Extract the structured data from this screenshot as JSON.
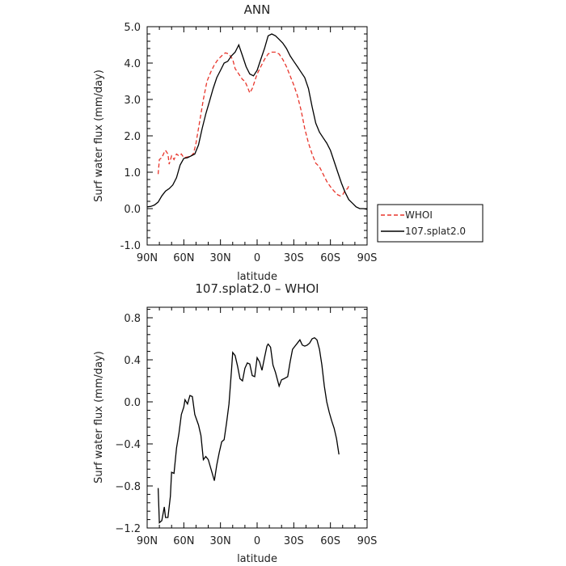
{
  "chart_data": [
    {
      "type": "line",
      "title": "ANN",
      "xlabel": "latitude",
      "ylabel": "Surf water flux (mm/day)",
      "xlim": [
        90,
        -90
      ],
      "ylim": [
        -1.0,
        5.0
      ],
      "x_ticks": [
        90,
        60,
        30,
        0,
        -30,
        -60,
        -90
      ],
      "x_tick_labels": [
        "90N",
        "60N",
        "30N",
        "0",
        "30S",
        "60S",
        "90S"
      ],
      "y_ticks": [
        -1,
        0,
        1,
        2,
        3,
        4,
        5
      ],
      "y_tick_labels": [
        "-1.0",
        "0.0",
        "1.0",
        "2.0",
        "3.0",
        "4.0",
        "5.0"
      ],
      "legend_position": "right",
      "series": [
        {
          "name": "WHOI",
          "color": "#e8352b",
          "dash": "dashed",
          "points": [
            [
              81,
              0.95
            ],
            [
              80,
              1.35
            ],
            [
              78,
              1.4
            ],
            [
              76,
              1.55
            ],
            [
              75,
              1.6
            ],
            [
              73,
              1.5
            ],
            [
              72,
              1.22
            ],
            [
              70,
              1.45
            ],
            [
              68,
              1.35
            ],
            [
              66,
              1.5
            ],
            [
              64,
              1.45
            ],
            [
              62,
              1.5
            ],
            [
              60,
              1.4
            ],
            [
              57,
              1.42
            ],
            [
              54,
              1.45
            ],
            [
              52,
              1.52
            ],
            [
              50,
              1.8
            ],
            [
              47,
              2.4
            ],
            [
              44,
              3.0
            ],
            [
              41,
              3.5
            ],
            [
              38,
              3.75
            ],
            [
              35,
              3.95
            ],
            [
              32,
              4.1
            ],
            [
              29,
              4.2
            ],
            [
              26,
              4.28
            ],
            [
              23,
              4.25
            ],
            [
              20,
              4.1
            ],
            [
              18,
              3.85
            ],
            [
              15,
              3.7
            ],
            [
              12,
              3.55
            ],
            [
              10,
              3.5
            ],
            [
              8,
              3.35
            ],
            [
              6,
              3.18
            ],
            [
              4,
              3.3
            ],
            [
              2,
              3.5
            ],
            [
              0,
              3.7
            ],
            [
              -3,
              3.9
            ],
            [
              -6,
              4.1
            ],
            [
              -9,
              4.25
            ],
            [
              -12,
              4.3
            ],
            [
              -15,
              4.3
            ],
            [
              -18,
              4.25
            ],
            [
              -21,
              4.1
            ],
            [
              -24,
              3.9
            ],
            [
              -27,
              3.65
            ],
            [
              -30,
              3.4
            ],
            [
              -33,
              3.1
            ],
            [
              -36,
              2.7
            ],
            [
              -39,
              2.2
            ],
            [
              -42,
              1.8
            ],
            [
              -45,
              1.5
            ],
            [
              -48,
              1.25
            ],
            [
              -51,
              1.15
            ],
            [
              -54,
              0.95
            ],
            [
              -57,
              0.75
            ],
            [
              -60,
              0.6
            ],
            [
              -63,
              0.48
            ],
            [
              -66,
              0.38
            ],
            [
              -68,
              0.35
            ],
            [
              -70,
              0.38
            ],
            [
              -72,
              0.5
            ],
            [
              -74,
              0.55
            ],
            [
              -75,
              0.62
            ]
          ]
        },
        {
          "name": "107.splat2.0",
          "color": "#000000",
          "dash": "solid",
          "points": [
            [
              90,
              0.05
            ],
            [
              87,
              0.06
            ],
            [
              84,
              0.1
            ],
            [
              81,
              0.18
            ],
            [
              78,
              0.35
            ],
            [
              75,
              0.48
            ],
            [
              72,
              0.55
            ],
            [
              69,
              0.65
            ],
            [
              66,
              0.85
            ],
            [
              63,
              1.2
            ],
            [
              60,
              1.38
            ],
            [
              57,
              1.4
            ],
            [
              54,
              1.45
            ],
            [
              51,
              1.5
            ],
            [
              48,
              1.75
            ],
            [
              45,
              2.2
            ],
            [
              42,
              2.6
            ],
            [
              39,
              2.95
            ],
            [
              36,
              3.3
            ],
            [
              33,
              3.6
            ],
            [
              30,
              3.8
            ],
            [
              27,
              4.0
            ],
            [
              24,
              4.05
            ],
            [
              21,
              4.2
            ],
            [
              18,
              4.3
            ],
            [
              15,
              4.5
            ],
            [
              12,
              4.2
            ],
            [
              9,
              3.9
            ],
            [
              6,
              3.7
            ],
            [
              3,
              3.65
            ],
            [
              0,
              3.8
            ],
            [
              -3,
              4.1
            ],
            [
              -6,
              4.4
            ],
            [
              -9,
              4.75
            ],
            [
              -12,
              4.8
            ],
            [
              -15,
              4.75
            ],
            [
              -18,
              4.65
            ],
            [
              -21,
              4.55
            ],
            [
              -24,
              4.4
            ],
            [
              -27,
              4.2
            ],
            [
              -30,
              4.05
            ],
            [
              -33,
              3.9
            ],
            [
              -36,
              3.75
            ],
            [
              -39,
              3.6
            ],
            [
              -42,
              3.3
            ],
            [
              -45,
              2.8
            ],
            [
              -48,
              2.35
            ],
            [
              -51,
              2.1
            ],
            [
              -54,
              1.95
            ],
            [
              -57,
              1.8
            ],
            [
              -60,
              1.6
            ],
            [
              -63,
              1.3
            ],
            [
              -66,
              1.0
            ],
            [
              -69,
              0.7
            ],
            [
              -72,
              0.45
            ],
            [
              -75,
              0.25
            ],
            [
              -78,
              0.15
            ],
            [
              -81,
              0.05
            ],
            [
              -84,
              0.0
            ],
            [
              -87,
              0.0
            ],
            [
              -90,
              -0.02
            ]
          ]
        }
      ]
    },
    {
      "type": "line",
      "title": "107.splat2.0 – WHOI",
      "xlabel": "latitude",
      "ylabel": "Surf water flux (mm/day)",
      "xlim": [
        90,
        -90
      ],
      "ylim": [
        -1.2,
        0.9
      ],
      "x_ticks": [
        90,
        60,
        30,
        0,
        -30,
        -60,
        -90
      ],
      "x_tick_labels": [
        "90N",
        "60N",
        "30N",
        "0",
        "30S",
        "60S",
        "90S"
      ],
      "y_ticks": [
        -1.2,
        -0.8,
        -0.4,
        0.0,
        0.4,
        0.8
      ],
      "y_tick_labels": [
        "−1.2",
        "−0.8",
        "−0.4",
        "0.0",
        "0.4",
        "0.8"
      ],
      "series": [
        {
          "color": "#000000",
          "dash": "solid",
          "points": [
            [
              81,
              -0.82
            ],
            [
              80,
              -1.15
            ],
            [
              78,
              -1.13
            ],
            [
              76,
              -1.0
            ],
            [
              75,
              -1.1
            ],
            [
              73,
              -1.1
            ],
            [
              71,
              -0.9
            ],
            [
              70,
              -0.67
            ],
            [
              68,
              -0.68
            ],
            [
              66,
              -0.44
            ],
            [
              64,
              -0.3
            ],
            [
              62,
              -0.12
            ],
            [
              60,
              -0.05
            ],
            [
              59,
              0.02
            ],
            [
              57,
              -0.02
            ],
            [
              55,
              0.06
            ],
            [
              53,
              0.05
            ],
            [
              51,
              -0.12
            ],
            [
              48,
              -0.22
            ],
            [
              46,
              -0.32
            ],
            [
              44,
              -0.55
            ],
            [
              42,
              -0.52
            ],
            [
              40,
              -0.55
            ],
            [
              37,
              -0.67
            ],
            [
              35,
              -0.75
            ],
            [
              33,
              -0.6
            ],
            [
              31,
              -0.48
            ],
            [
              29,
              -0.38
            ],
            [
              27,
              -0.36
            ],
            [
              25,
              -0.2
            ],
            [
              23,
              -0.02
            ],
            [
              21,
              0.3
            ],
            [
              20,
              0.47
            ],
            [
              18,
              0.44
            ],
            [
              16,
              0.34
            ],
            [
              14,
              0.22
            ],
            [
              12,
              0.2
            ],
            [
              10,
              0.32
            ],
            [
              8,
              0.37
            ],
            [
              6,
              0.36
            ],
            [
              4,
              0.25
            ],
            [
              2,
              0.24
            ],
            [
              0,
              0.42
            ],
            [
              -2,
              0.38
            ],
            [
              -4,
              0.3
            ],
            [
              -6,
              0.42
            ],
            [
              -8,
              0.53
            ],
            [
              -9,
              0.55
            ],
            [
              -11,
              0.52
            ],
            [
              -13,
              0.35
            ],
            [
              -15,
              0.28
            ],
            [
              -18,
              0.15
            ],
            [
              -20,
              0.21
            ],
            [
              -22,
              0.22
            ],
            [
              -25,
              0.24
            ],
            [
              -27,
              0.38
            ],
            [
              -29,
              0.5
            ],
            [
              -31,
              0.53
            ],
            [
              -33,
              0.56
            ],
            [
              -35,
              0.59
            ],
            [
              -37,
              0.54
            ],
            [
              -39,
              0.53
            ],
            [
              -41,
              0.54
            ],
            [
              -43,
              0.56
            ],
            [
              -45,
              0.6
            ],
            [
              -47,
              0.61
            ],
            [
              -49,
              0.59
            ],
            [
              -51,
              0.5
            ],
            [
              -53,
              0.35
            ],
            [
              -55,
              0.15
            ],
            [
              -57,
              0.0
            ],
            [
              -59,
              -0.1
            ],
            [
              -61,
              -0.18
            ],
            [
              -63,
              -0.25
            ],
            [
              -65,
              -0.35
            ],
            [
              -67,
              -0.5
            ]
          ]
        }
      ]
    }
  ]
}
